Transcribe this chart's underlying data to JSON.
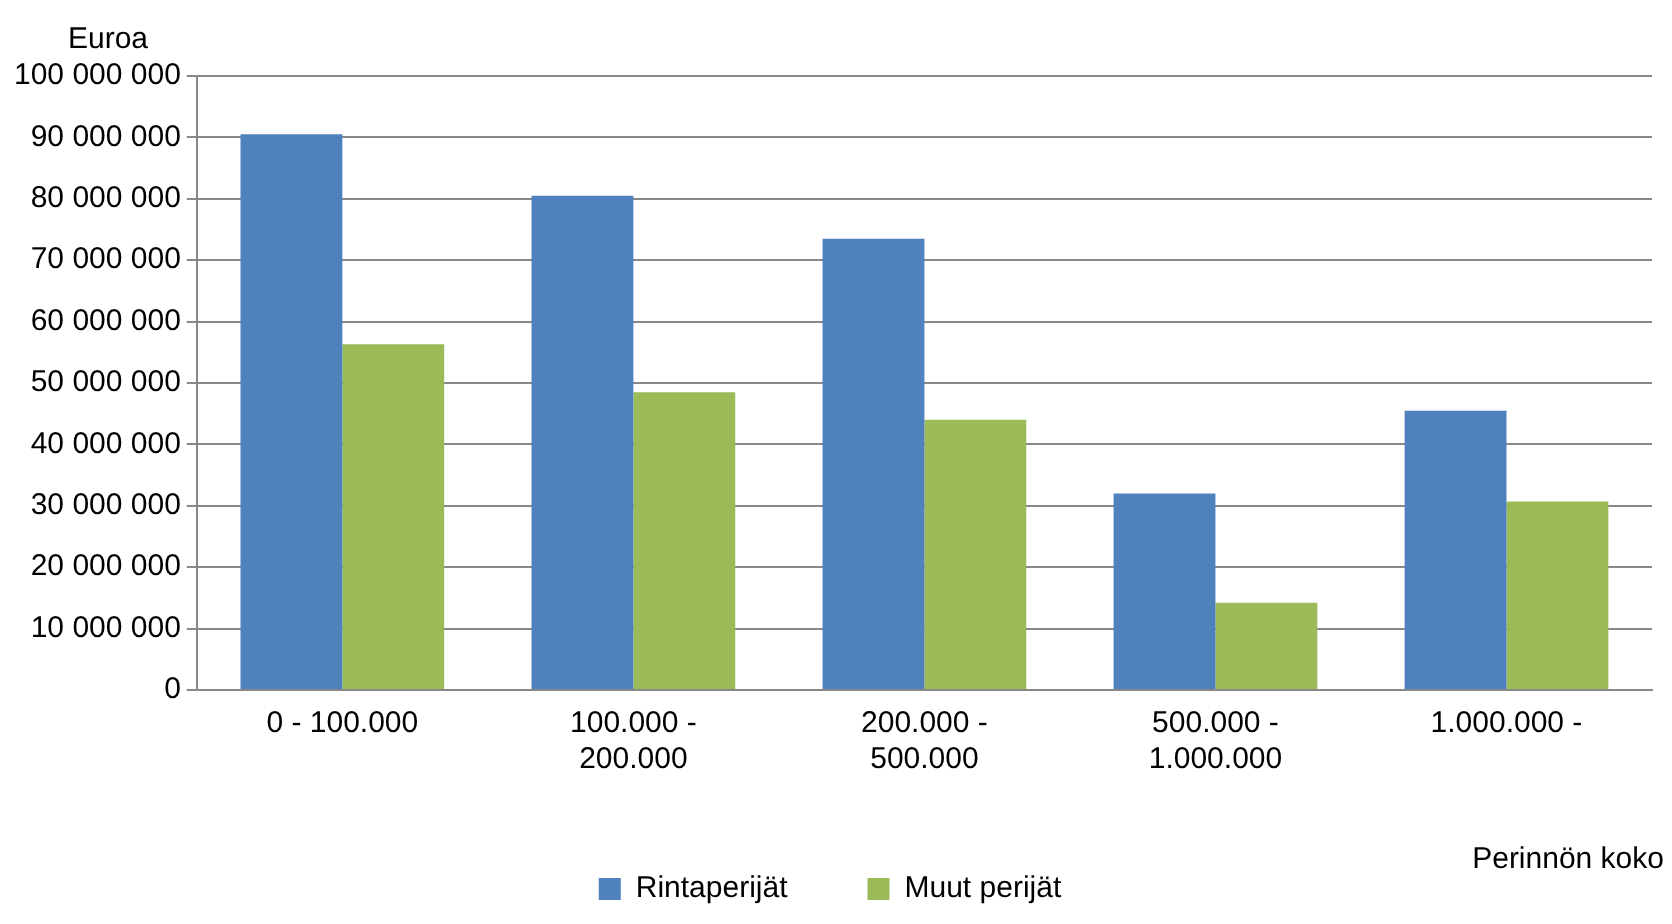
{
  "chart_data": {
    "type": "bar",
    "ylabel": "Euroa",
    "xlabel": "Perinnön koko",
    "categories": [
      "0 - 100.000",
      "100.000 -\n200.000",
      "200.000 -\n500.000",
      "500.000 -\n1.000.000",
      "1.000.000 -"
    ],
    "series": [
      {
        "name": "Rintaperijät",
        "color": "#4f81bd",
        "values": [
          90500000,
          80500000,
          73500000,
          32000000,
          45500000
        ]
      },
      {
        "name": "Muut perijät",
        "color": "#9bbb59",
        "values": [
          56300000,
          48500000,
          44000000,
          14200000,
          30700000
        ]
      }
    ],
    "ylim": [
      0,
      100000000
    ],
    "yticks": [
      {
        "value": 0,
        "label": "0"
      },
      {
        "value": 10000000,
        "label": "10 000 000"
      },
      {
        "value": 20000000,
        "label": "20 000 000"
      },
      {
        "value": 30000000,
        "label": "30 000 000"
      },
      {
        "value": 40000000,
        "label": "40 000 000"
      },
      {
        "value": 50000000,
        "label": "50 000 000"
      },
      {
        "value": 60000000,
        "label": "60 000 000"
      },
      {
        "value": 70000000,
        "label": "70 000 000"
      },
      {
        "value": 80000000,
        "label": "80 000 000"
      },
      {
        "value": 90000000,
        "label": "90 000 000"
      },
      {
        "value": 100000000,
        "label": "100 000 000"
      }
    ],
    "grid": "y",
    "legend": "bottom"
  }
}
